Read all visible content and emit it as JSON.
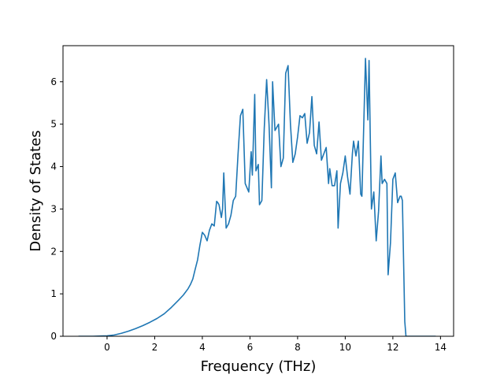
{
  "chart_data": {
    "type": "line",
    "title": "",
    "xlabel": "Frequency (THz)",
    "ylabel": "Density of States",
    "xlim": [
      -1.85,
      14.55
    ],
    "ylim": [
      0,
      6.85
    ],
    "xticks": [
      0,
      2,
      4,
      6,
      8,
      10,
      12,
      14
    ],
    "yticks": [
      0,
      1,
      2,
      3,
      4,
      5,
      6
    ],
    "grid": false,
    "legend": "none",
    "colors": {
      "line": "#1f77b4",
      "axes": "#000000",
      "background": "#ffffff"
    },
    "series": [
      {
        "x": [
          -1.2,
          -0.6,
          0.0,
          0.3,
          0.6,
          0.9,
          1.2,
          1.5,
          1.8,
          2.1,
          2.4,
          2.7,
          3.0,
          3.2,
          3.4,
          3.5,
          3.6,
          3.7,
          3.8,
          3.9,
          4.0,
          4.1,
          4.2,
          4.3,
          4.4,
          4.5,
          4.6,
          4.65,
          4.7,
          4.8,
          4.85,
          4.9,
          5.0,
          5.1,
          5.2,
          5.3,
          5.4,
          5.5,
          5.6,
          5.7,
          5.8,
          5.95,
          6.05,
          6.1,
          6.2,
          6.25,
          6.35,
          6.4,
          6.5,
          6.6,
          6.7,
          6.8,
          6.9,
          6.95,
          7.05,
          7.2,
          7.3,
          7.4,
          7.5,
          7.6,
          7.7,
          7.8,
          7.9,
          8.0,
          8.1,
          8.2,
          8.3,
          8.4,
          8.5,
          8.6,
          8.7,
          8.8,
          8.9,
          9.0,
          9.1,
          9.2,
          9.3,
          9.35,
          9.45,
          9.55,
          9.65,
          9.7,
          9.8,
          9.9,
          10.0,
          10.1,
          10.2,
          10.3,
          10.35,
          10.45,
          10.55,
          10.65,
          10.7,
          10.85,
          10.95,
          11.0,
          11.1,
          11.2,
          11.3,
          11.4,
          11.5,
          11.55,
          11.65,
          11.75,
          11.8,
          11.9,
          12.0,
          12.1,
          12.15,
          12.2,
          12.3,
          12.35,
          12.4,
          12.5,
          12.55,
          13.0,
          13.8
        ],
        "y": [
          0,
          0,
          0.01,
          0.03,
          0.07,
          0.12,
          0.18,
          0.25,
          0.33,
          0.42,
          0.53,
          0.68,
          0.85,
          0.97,
          1.12,
          1.22,
          1.35,
          1.58,
          1.8,
          2.15,
          2.45,
          2.38,
          2.25,
          2.5,
          2.65,
          2.6,
          3.18,
          3.15,
          3.1,
          2.8,
          3.0,
          3.85,
          2.55,
          2.65,
          2.85,
          3.2,
          3.3,
          4.3,
          5.2,
          5.35,
          3.6,
          3.4,
          4.35,
          3.8,
          5.7,
          3.9,
          4.05,
          3.1,
          3.2,
          4.9,
          6.05,
          5.0,
          3.5,
          6.0,
          4.85,
          5.0,
          4.0,
          4.2,
          6.2,
          6.38,
          5.0,
          4.1,
          4.3,
          4.7,
          5.2,
          5.15,
          5.25,
          4.55,
          4.8,
          5.65,
          4.5,
          4.3,
          5.05,
          4.15,
          4.3,
          4.45,
          3.6,
          3.95,
          3.55,
          3.55,
          3.9,
          2.55,
          3.6,
          3.85,
          4.25,
          3.75,
          3.35,
          4.3,
          4.6,
          4.25,
          4.6,
          3.35,
          3.3,
          6.55,
          5.1,
          6.5,
          3.0,
          3.4,
          2.25,
          2.95,
          4.25,
          3.6,
          3.7,
          3.6,
          1.45,
          2.2,
          3.7,
          3.85,
          3.5,
          3.15,
          3.3,
          3.3,
          3.2,
          0.35,
          0,
          0,
          0
        ]
      }
    ]
  }
}
